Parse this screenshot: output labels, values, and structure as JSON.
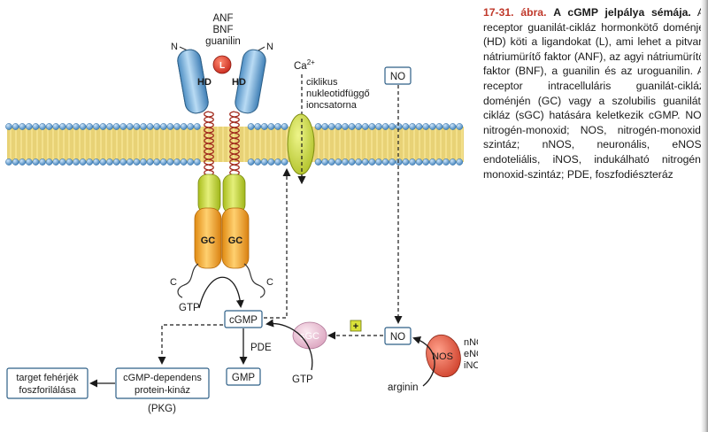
{
  "diagram": {
    "ligands": [
      "ANF",
      "BNF",
      "guanilin"
    ],
    "ligand_badge": "L",
    "n_terminal": "N",
    "c_terminal": "C",
    "hd_label": "HD",
    "gc_label": "GC",
    "calcium": "Ca",
    "calcium_sup": "2+",
    "channel_label": [
      "ciklikus",
      "nukleotidfüggő",
      "ioncsatorna"
    ],
    "no_top": "NO",
    "no_mid": "NO",
    "gtp_left": "GTP",
    "gtp_right": "GTP",
    "cgmp": "cGMP",
    "gmp": "GMP",
    "pde": "PDE",
    "sgc": "sGC",
    "plus": "+",
    "nos": "NOS",
    "nos_types": [
      "nNOS",
      "eNOS",
      "iNOS"
    ],
    "arginin": "arginin",
    "pkg_box": [
      "cGMP-dependens",
      "protein-kináz"
    ],
    "pkg_abbr": "(PKG)",
    "target_box": [
      "target fehérjék",
      "foszforilálása"
    ]
  },
  "caption": {
    "number": "17-31. ábra.",
    "title": "A cGMP jelpálya sémája.",
    "text": "A receptor guanilát-cikláz hormonkötő doménje (HD) köti a ligandokat (L), ami lehet a pitvari nátriumürítő faktor (ANF), az agyi nátriumürítő faktor (BNF), a guanilin és az uroguanilin. A receptor intracelluláris guanilát-cikláz doménjén (GC) vagy a szolubilis guanilát-cikláz (sGC) hatására keletkezik cGMP. NO, nitrogén-monoxid; NOS, nitrogén-monoxid-szintáz; nNOS, neuronális, eNOS, endoteliális, iNOS, indukálható nitrogén-monoxid-szintáz; PDE, foszfodiészteráz"
  },
  "colors": {
    "membrane_head": "#6fa8d6",
    "membrane_tail": "#e9cf55",
    "hd": "#8ebfe6",
    "gc": "#f3a93a",
    "juxta": "#c7d94a",
    "ligand": "#d93b2b",
    "channel": "#c4d43a",
    "nos": "#d9482f",
    "sgc": "#e4b6cc",
    "box_border": "#2d5f87"
  }
}
